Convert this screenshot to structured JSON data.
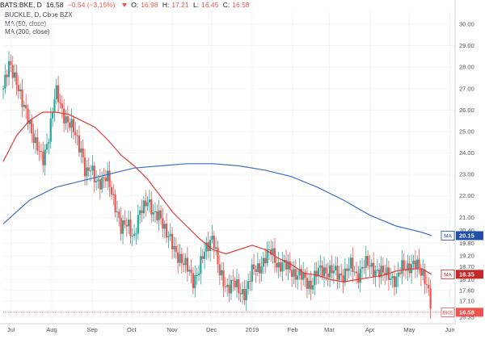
{
  "header": {
    "symbol": "BATS:BKE, D",
    "last": "16.58",
    "change": "−0.54 (−3.15%)",
    "o_label": "O:",
    "o": "16.98",
    "h_label": "H:",
    "h": "17.21",
    "l_label": "L:",
    "l": "16.45",
    "c_label": "C:",
    "c": "16.58"
  },
  "legend": {
    "title": "BUCKLE, D, Cboe BZX",
    "ma1": "MA (50, close)",
    "ma2": "MA (200, close)"
  },
  "colors": {
    "up": "#26a69a",
    "down": "#ef5350",
    "ma50": "#e53935",
    "ma200": "#3a6fc4",
    "last_line": "#ef5350",
    "grid": "#f0f3fa"
  },
  "badges": [
    {
      "label": "MA",
      "value": "20.15",
      "color": "#1f4fa8"
    },
    {
      "label": "MA",
      "value": "18.35",
      "color": "#c62828"
    },
    {
      "label": "BKE",
      "value": "16.58",
      "color": "#ef5350"
    }
  ],
  "chart_data": {
    "type": "candlestick",
    "title": "BUCKLE, D, Cboe BZX",
    "y_ticks": [
      "30.00",
      "29.00",
      "28.00",
      "27.00",
      "26.00",
      "25.00",
      "24.00",
      "23.00",
      "22.00",
      "21.00",
      "20.40",
      "19.80",
      "19.20",
      "18.70",
      "18.10",
      "17.60",
      "17.10",
      "16.35"
    ],
    "y_tick_values": [
      30.0,
      29.0,
      28.0,
      27.0,
      26.0,
      25.0,
      24.0,
      23.0,
      22.0,
      21.0,
      20.4,
      19.8,
      19.2,
      18.7,
      18.1,
      17.6,
      17.1,
      16.35
    ],
    "x_ticks": [
      "Jul",
      "Aug",
      "Sep",
      "Oct",
      "Nov",
      "Dec",
      "2019",
      "Feb",
      "Mar",
      "Apr",
      "May",
      "Jun"
    ],
    "x_tick_days": [
      6,
      37,
      68,
      98,
      129,
      159,
      190,
      221,
      249,
      280,
      310,
      341
    ],
    "x_range_days": [
      0,
      345
    ],
    "ylim": [
      16.2,
      30.6
    ],
    "grid": true,
    "series": [
      {
        "name": "MA (50, close)",
        "kind": "line",
        "x": [
          0,
          10,
          20,
          30,
          40,
          50,
          60,
          70,
          80,
          90,
          100,
          110,
          120,
          130,
          140,
          150,
          160,
          170,
          180,
          190,
          200,
          210,
          220,
          230,
          240,
          250,
          260,
          270,
          280,
          290,
          300,
          310,
          320,
          327
        ],
        "y": [
          23.6,
          24.8,
          25.5,
          25.9,
          25.9,
          25.8,
          25.5,
          25.2,
          24.6,
          23.9,
          23.4,
          22.8,
          22.0,
          21.2,
          20.6,
          20.0,
          19.5,
          19.3,
          19.5,
          19.7,
          19.5,
          19.1,
          18.8,
          18.4,
          18.3,
          18.1,
          18.0,
          18.1,
          18.2,
          18.3,
          18.5,
          18.6,
          18.6,
          18.35
        ]
      },
      {
        "name": "MA (200, close)",
        "kind": "line",
        "x": [
          0,
          20,
          40,
          60,
          80,
          100,
          120,
          140,
          160,
          180,
          200,
          220,
          240,
          260,
          280,
          300,
          320,
          327
        ],
        "y": [
          20.7,
          21.8,
          22.4,
          22.7,
          23.0,
          23.3,
          23.4,
          23.5,
          23.5,
          23.4,
          23.2,
          22.9,
          22.4,
          21.8,
          21.1,
          20.6,
          20.3,
          20.15
        ]
      },
      {
        "name": "Price (close)",
        "kind": "candles",
        "x": [
          0,
          5,
          10,
          15,
          20,
          25,
          30,
          35,
          40,
          45,
          50,
          55,
          60,
          63,
          67,
          70,
          75,
          80,
          85,
          90,
          95,
          100,
          105,
          110,
          115,
          120,
          125,
          130,
          135,
          140,
          145,
          150,
          155,
          160,
          165,
          170,
          175,
          180,
          185,
          190,
          195,
          200,
          205,
          210,
          215,
          220,
          225,
          230,
          235,
          240,
          245,
          250,
          255,
          260,
          265,
          270,
          275,
          280,
          285,
          290,
          295,
          300,
          305,
          310,
          315,
          320,
          323,
          326,
          327
        ],
        "y": [
          27.0,
          28.1,
          27.5,
          26.1,
          25.5,
          24.4,
          23.5,
          25.0,
          26.8,
          26.0,
          25.4,
          24.8,
          24.2,
          22.9,
          23.2,
          22.9,
          22.6,
          22.8,
          21.8,
          20.3,
          20.9,
          20.0,
          21.3,
          22.0,
          20.9,
          21.2,
          20.2,
          19.5,
          19.2,
          18.6,
          18.1,
          18.7,
          19.5,
          20.3,
          18.3,
          17.8,
          18.0,
          17.5,
          17.6,
          18.4,
          18.7,
          19.1,
          19.4,
          18.8,
          18.7,
          18.6,
          18.3,
          18.1,
          17.9,
          18.4,
          18.6,
          18.5,
          18.3,
          18.4,
          18.7,
          18.3,
          18.8,
          18.7,
          18.6,
          18.3,
          18.4,
          18.0,
          18.7,
          18.8,
          18.7,
          18.5,
          18.1,
          17.0,
          16.58
        ]
      }
    ],
    "last_price": 16.58,
    "ma_last": {
      "ma50": 18.35,
      "ma200": 20.15
    }
  }
}
